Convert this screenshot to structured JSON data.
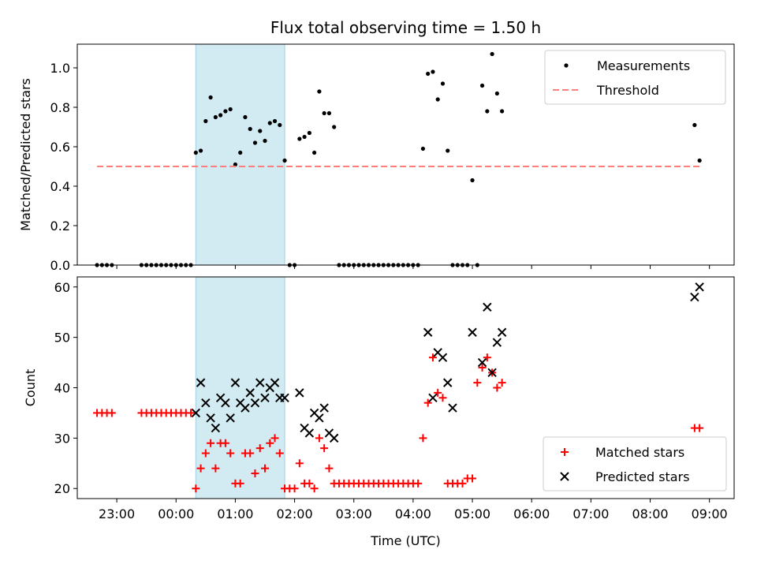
{
  "chart_data": [
    {
      "type": "scatter",
      "title": "Flux total observing time = 1.50 h",
      "xlabel": "",
      "ylabel": "Matched/Predicted stars",
      "x_axis": "time_utc",
      "xlim": [
        "22:20",
        "09:25"
      ],
      "ylim": [
        0,
        1.12
      ],
      "yticks": [
        0.0,
        0.2,
        0.4,
        0.6,
        0.8,
        1.0
      ],
      "ytick_labels": [
        "0.0",
        "0.2",
        "0.4",
        "0.6",
        "0.8",
        "1.0"
      ],
      "legend_position": "upper right",
      "shaded_span": {
        "from": "00:20",
        "to": "01:50",
        "color": "#add8e6"
      },
      "series": [
        {
          "name": "Measurements",
          "kind": "scatter",
          "color": "#000000",
          "x": [
            "22:40",
            "22:45",
            "22:50",
            "22:55",
            "23:25",
            "23:30",
            "23:35",
            "23:40",
            "23:45",
            "23:50",
            "23:55",
            "00:00",
            "00:05",
            "00:10",
            "00:15",
            "00:20",
            "00:25",
            "00:30",
            "00:35",
            "00:40",
            "00:45",
            "00:50",
            "00:55",
            "01:00",
            "01:05",
            "01:10",
            "01:15",
            "01:20",
            "01:25",
            "01:30",
            "01:35",
            "01:40",
            "01:45",
            "01:50",
            "01:55",
            "02:00",
            "02:05",
            "02:10",
            "02:15",
            "02:20",
            "02:25",
            "02:30",
            "02:35",
            "02:40",
            "02:45",
            "02:50",
            "02:55",
            "03:00",
            "03:05",
            "03:10",
            "03:15",
            "03:20",
            "03:25",
            "03:30",
            "03:35",
            "03:40",
            "03:45",
            "03:50",
            "03:55",
            "04:00",
            "04:05",
            "04:10",
            "04:15",
            "04:20",
            "04:25",
            "04:30",
            "04:35",
            "04:40",
            "04:45",
            "04:50",
            "04:55",
            "05:00",
            "05:05",
            "05:10",
            "05:15",
            "05:20",
            "05:25",
            "05:30",
            "08:45",
            "08:50"
          ],
          "y": [
            0,
            0,
            0,
            0,
            0,
            0,
            0,
            0,
            0,
            0,
            0,
            0,
            0,
            0,
            0,
            0.57,
            0.58,
            0.73,
            0.85,
            0.75,
            0.76,
            0.78,
            0.79,
            0.51,
            0.57,
            0.75,
            0.69,
            0.62,
            0.68,
            0.63,
            0.72,
            0.73,
            0.71,
            0.53,
            0,
            0,
            0.64,
            0.65,
            0.67,
            0.57,
            0.88,
            0.77,
            0.77,
            0.7,
            0,
            0,
            0,
            0,
            0,
            0,
            0,
            0,
            0,
            0,
            0,
            0,
            0,
            0,
            0,
            0,
            0,
            0.59,
            0.97,
            0.98,
            0.84,
            0.92,
            0.58,
            0,
            0,
            0,
            0,
            0.43,
            0,
            0.91,
            0.78,
            1.07,
            0.87,
            0.78,
            0.71,
            0.53
          ]
        },
        {
          "name": "Threshold",
          "kind": "line",
          "style": "dashed",
          "color": "#ff7f7f",
          "x": [
            "22:40",
            "08:50"
          ],
          "y": [
            0.5,
            0.5
          ]
        }
      ]
    },
    {
      "type": "scatter",
      "title": "",
      "xlabel": "Time (UTC)",
      "ylabel": "Count",
      "x_axis": "time_utc",
      "xlim": [
        "22:20",
        "09:25"
      ],
      "ylim": [
        18,
        62
      ],
      "yticks": [
        20,
        30,
        40,
        50,
        60
      ],
      "ytick_labels": [
        "20",
        "30",
        "40",
        "50",
        "60"
      ],
      "xticks": [
        "23:00",
        "00:00",
        "01:00",
        "02:00",
        "03:00",
        "04:00",
        "05:00",
        "06:00",
        "07:00",
        "08:00",
        "09:00"
      ],
      "legend_position": "lower right",
      "shaded_span": {
        "from": "00:20",
        "to": "01:50",
        "color": "#add8e6"
      },
      "series": [
        {
          "name": "Matched stars",
          "kind": "scatter",
          "marker": "plus",
          "color": "#ff0000",
          "x": [
            "22:40",
            "22:45",
            "22:50",
            "22:55",
            "23:25",
            "23:30",
            "23:35",
            "23:40",
            "23:45",
            "23:50",
            "23:55",
            "00:00",
            "00:05",
            "00:10",
            "00:15",
            "00:20",
            "00:25",
            "00:30",
            "00:35",
            "00:40",
            "00:45",
            "00:50",
            "00:55",
            "01:00",
            "01:05",
            "01:10",
            "01:15",
            "01:20",
            "01:25",
            "01:30",
            "01:35",
            "01:40",
            "01:45",
            "01:50",
            "01:55",
            "02:00",
            "02:05",
            "02:10",
            "02:15",
            "02:20",
            "02:25",
            "02:30",
            "02:35",
            "02:40",
            "02:45",
            "02:50",
            "02:55",
            "03:00",
            "03:05",
            "03:10",
            "03:15",
            "03:20",
            "03:25",
            "03:30",
            "03:35",
            "03:40",
            "03:45",
            "03:50",
            "03:55",
            "04:00",
            "04:05",
            "04:10",
            "04:15",
            "04:20",
            "04:25",
            "04:30",
            "04:35",
            "04:40",
            "04:45",
            "04:50",
            "04:55",
            "05:00",
            "05:05",
            "05:10",
            "05:15",
            "05:20",
            "05:25",
            "05:30",
            "08:45",
            "08:50"
          ],
          "y": [
            35,
            35,
            35,
            35,
            35,
            35,
            35,
            35,
            35,
            35,
            35,
            35,
            35,
            35,
            35,
            20,
            24,
            27,
            29,
            24,
            29,
            29,
            27,
            21,
            21,
            27,
            27,
            23,
            28,
            24,
            29,
            30,
            27,
            20,
            20,
            20,
            25,
            21,
            21,
            20,
            30,
            28,
            24,
            21,
            21,
            21,
            21,
            21,
            21,
            21,
            21,
            21,
            21,
            21,
            21,
            21,
            21,
            21,
            21,
            21,
            21,
            30,
            37,
            46,
            39,
            38,
            21,
            21,
            21,
            21,
            22,
            22,
            41,
            44,
            46,
            43,
            40,
            41,
            32,
            32
          ]
        },
        {
          "name": "Predicted stars",
          "kind": "scatter",
          "marker": "x",
          "color": "#000000",
          "x": [
            "00:20",
            "00:25",
            "00:30",
            "00:35",
            "00:40",
            "00:45",
            "00:50",
            "00:55",
            "01:00",
            "01:05",
            "01:10",
            "01:15",
            "01:20",
            "01:25",
            "01:30",
            "01:35",
            "01:40",
            "01:45",
            "01:50",
            "02:05",
            "02:10",
            "02:15",
            "02:20",
            "02:25",
            "02:30",
            "02:35",
            "02:40",
            "04:15",
            "04:20",
            "04:25",
            "04:30",
            "04:35",
            "04:40",
            "05:00",
            "05:10",
            "05:15",
            "05:20",
            "05:25",
            "05:30",
            "08:45",
            "08:50"
          ],
          "y": [
            35,
            41,
            37,
            34,
            32,
            38,
            37,
            34,
            41,
            37,
            36,
            39,
            37,
            41,
            38,
            40,
            41,
            38,
            38,
            39,
            32,
            31,
            35,
            34,
            36,
            31,
            30,
            51,
            38,
            47,
            46,
            41,
            36,
            51,
            45,
            56,
            43,
            49,
            51,
            58,
            60
          ]
        }
      ]
    }
  ]
}
